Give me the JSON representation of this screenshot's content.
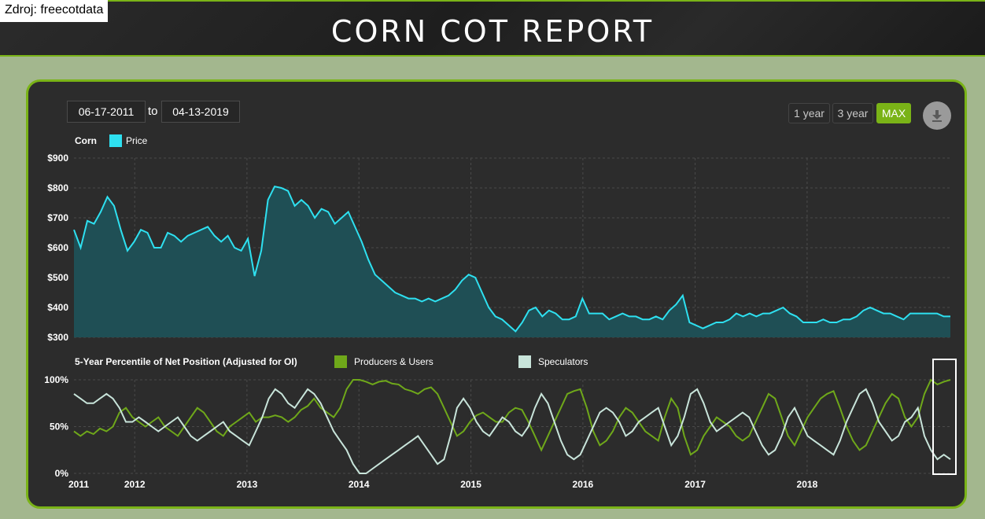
{
  "header": {
    "source": "Zdroj: freecotdata",
    "title": "CORN COT REPORT"
  },
  "controls": {
    "date_from": "06-17-2011",
    "to_label": "to",
    "date_to": "04-13-2019",
    "ranges": [
      "1 year",
      "3 year",
      "MAX"
    ],
    "active_range": "MAX",
    "download_icon": "download-icon"
  },
  "colors": {
    "accent": "#7ab317",
    "price_line": "#2ee0f0",
    "price_fill": "#1f4f55",
    "producers": "#6fa81a",
    "speculators": "#c8e4da",
    "highlight_box": "#ffffff"
  },
  "chart_data": [
    {
      "type": "area",
      "legend_title": "Corn",
      "series": [
        {
          "name": "Price",
          "values": [
            660,
            600,
            690,
            680,
            720,
            770,
            740,
            660,
            590,
            620,
            660,
            650,
            600,
            600,
            650,
            640,
            620,
            640,
            650,
            660,
            670,
            640,
            620,
            640,
            600,
            590,
            630,
            505,
            590,
            760,
            805,
            800,
            790,
            740,
            760,
            740,
            700,
            730,
            720,
            680,
            700,
            720,
            670,
            620,
            560,
            510,
            490,
            470,
            450,
            440,
            430,
            430,
            420,
            430,
            420,
            430,
            440,
            460,
            490,
            510,
            500,
            450,
            400,
            370,
            360,
            340,
            320,
            350,
            390,
            400,
            370,
            390,
            380,
            360,
            360,
            370,
            430,
            380,
            380,
            380,
            360,
            370,
            380,
            370,
            370,
            360,
            360,
            370,
            360,
            390,
            410,
            440,
            350,
            340,
            330,
            340,
            350,
            350,
            360,
            380,
            370,
            380,
            370,
            380,
            380,
            390,
            400,
            380,
            370,
            350,
            350,
            350,
            360,
            350,
            350,
            360,
            360,
            370,
            390,
            400,
            390,
            380,
            380,
            370,
            360,
            380,
            380,
            380,
            380,
            380,
            370,
            370
          ]
        }
      ],
      "x_start": "2011-06-17",
      "x_end": "2019-04-13",
      "x_ticks": [
        "2011",
        "2012",
        "2013",
        "2014",
        "2015",
        "2016",
        "2017",
        "2018"
      ],
      "y_ticks": [
        "$900",
        "$800",
        "$700",
        "$600",
        "$500",
        "$400",
        "$300"
      ],
      "ylim": [
        300,
        900
      ],
      "grid": true
    },
    {
      "type": "line",
      "legend_title": "5-Year Percentile of Net Position (Adjusted for OI)",
      "series": [
        {
          "name": "Producers & Users",
          "values": [
            45,
            40,
            45,
            42,
            48,
            45,
            50,
            65,
            70,
            60,
            55,
            50,
            55,
            60,
            50,
            45,
            40,
            50,
            60,
            70,
            65,
            55,
            45,
            40,
            50,
            55,
            60,
            65,
            55,
            60,
            60,
            62,
            60,
            55,
            60,
            68,
            72,
            80,
            70,
            65,
            60,
            70,
            90,
            100,
            100,
            98,
            95,
            98,
            99,
            96,
            95,
            90,
            88,
            85,
            90,
            92,
            85,
            70,
            55,
            40,
            45,
            55,
            62,
            65,
            60,
            55,
            55,
            65,
            70,
            68,
            55,
            40,
            25,
            40,
            55,
            70,
            85,
            88,
            90,
            70,
            45,
            30,
            35,
            45,
            60,
            70,
            65,
            55,
            45,
            40,
            35,
            60,
            80,
            70,
            40,
            20,
            25,
            40,
            50,
            60,
            55,
            50,
            40,
            35,
            40,
            55,
            70,
            85,
            80,
            60,
            40,
            30,
            45,
            60,
            70,
            80,
            85,
            88,
            70,
            50,
            35,
            25,
            30,
            45,
            60,
            75,
            85,
            80,
            60,
            50,
            60,
            85,
            100,
            95,
            98,
            100
          ]
        },
        {
          "name": "Speculators",
          "values": [
            85,
            80,
            75,
            75,
            80,
            85,
            80,
            70,
            55,
            55,
            60,
            55,
            50,
            45,
            50,
            55,
            60,
            50,
            40,
            35,
            40,
            45,
            50,
            55,
            45,
            40,
            35,
            30,
            45,
            60,
            80,
            90,
            85,
            75,
            70,
            80,
            90,
            85,
            75,
            60,
            45,
            35,
            25,
            10,
            0,
            0,
            5,
            10,
            15,
            20,
            25,
            30,
            35,
            40,
            30,
            20,
            10,
            15,
            40,
            70,
            80,
            70,
            55,
            45,
            40,
            50,
            60,
            55,
            45,
            40,
            50,
            70,
            85,
            75,
            55,
            35,
            20,
            15,
            20,
            35,
            50,
            65,
            70,
            65,
            55,
            40,
            45,
            55,
            60,
            65,
            70,
            50,
            30,
            40,
            60,
            85,
            90,
            75,
            55,
            45,
            50,
            55,
            60,
            65,
            60,
            45,
            30,
            20,
            25,
            40,
            60,
            70,
            55,
            40,
            35,
            30,
            25,
            20,
            35,
            55,
            70,
            85,
            90,
            75,
            55,
            45,
            35,
            40,
            55,
            60,
            70,
            40,
            25,
            15,
            20,
            15
          ]
        }
      ],
      "x_start": "2011-06-17",
      "x_end": "2019-04-13",
      "x_ticks": [
        "2011",
        "2012",
        "2013",
        "2014",
        "2015",
        "2016",
        "2017",
        "2018"
      ],
      "y_ticks": [
        "100%",
        "50%",
        "0%"
      ],
      "ylim": [
        0,
        100
      ],
      "grid": true,
      "highlight": "last weeks (2019)"
    }
  ]
}
